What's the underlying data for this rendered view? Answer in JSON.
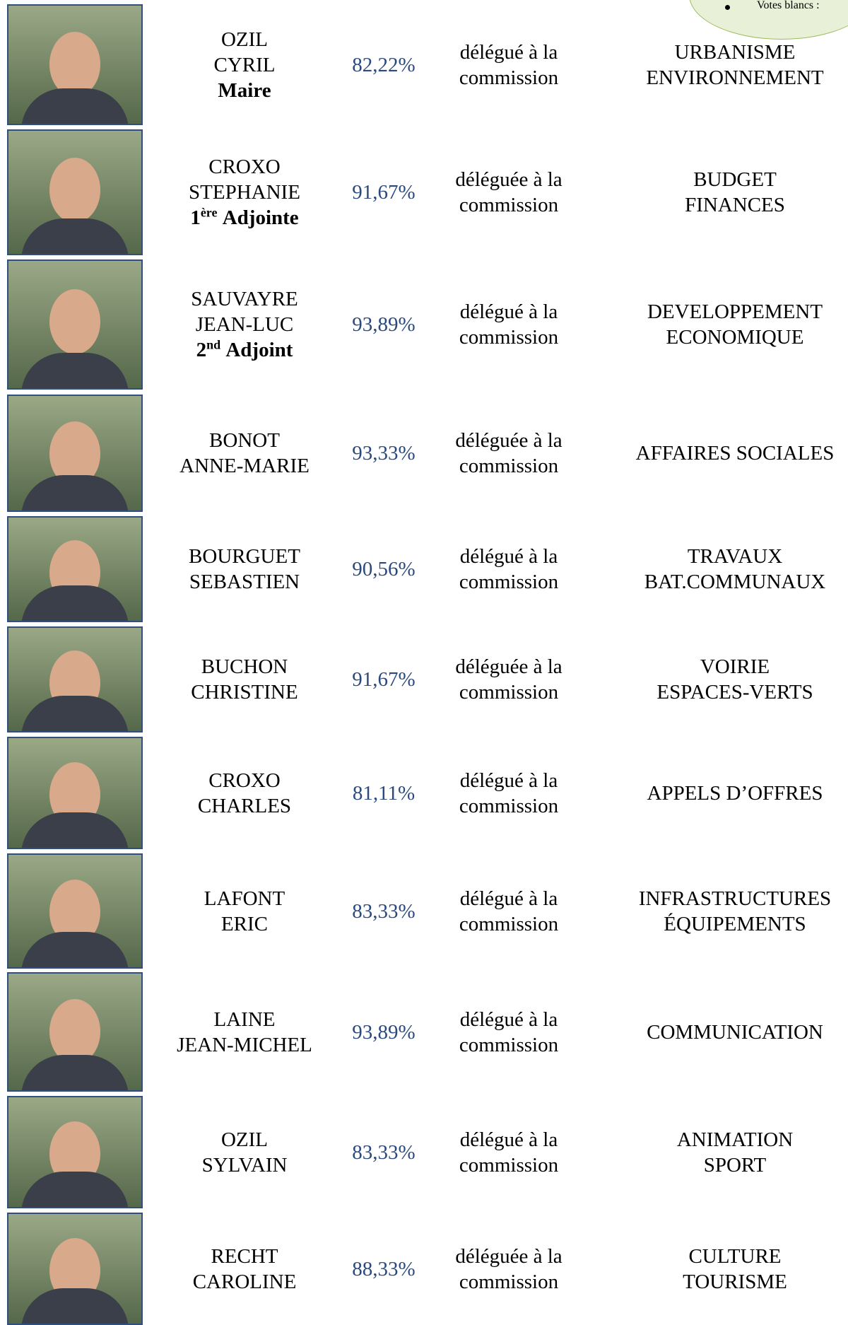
{
  "note": {
    "text": "Votes blancs :"
  },
  "rows": [
    {
      "name": [
        "OZIL",
        "CYRIL"
      ],
      "role": {
        "text": "Maire"
      },
      "percent": "82,22%",
      "delegate": [
        "délégué à la",
        "commission"
      ],
      "commission": [
        "URBANISME",
        "ENVIRONNEMENT"
      ]
    },
    {
      "name": [
        "CROXO",
        "STEPHANIE"
      ],
      "role": {
        "num": "1",
        "sup": "ère",
        "text": "Adjointe"
      },
      "percent": "91,67%",
      "delegate": [
        "déléguée à la",
        "commission"
      ],
      "commission": [
        "BUDGET",
        "FINANCES"
      ]
    },
    {
      "name": [
        "SAUVAYRE",
        "JEAN-LUC"
      ],
      "role": {
        "num": "2",
        "sup": "nd",
        "text": "Adjoint"
      },
      "percent": "93,89%",
      "delegate": [
        "délégué à la",
        "commission"
      ],
      "commission": [
        "DEVELOPPEMENT",
        "ECONOMIQUE"
      ]
    },
    {
      "name": [
        "BONOT",
        "ANNE-MARIE"
      ],
      "percent": "93,33%",
      "delegate": [
        "déléguée à la",
        "commission"
      ],
      "commission": [
        "AFFAIRES SOCIALES"
      ]
    },
    {
      "name": [
        "BOURGUET",
        "SEBASTIEN"
      ],
      "percent": "90,56%",
      "delegate": [
        "délégué à la",
        "commission"
      ],
      "commission": [
        "TRAVAUX",
        "BAT.COMMUNAUX"
      ]
    },
    {
      "name": [
        "BUCHON",
        "CHRISTINE"
      ],
      "percent": "91,67%",
      "delegate": [
        "déléguée à la",
        "commission"
      ],
      "commission": [
        "VOIRIE",
        "ESPACES-VERTS"
      ]
    },
    {
      "name": [
        "CROXO",
        "CHARLES"
      ],
      "percent": "81,11%",
      "delegate": [
        "délégué à la",
        "commission"
      ],
      "commission": [
        "APPELS D’OFFRES"
      ]
    },
    {
      "name": [
        "LAFONT",
        "ERIC"
      ],
      "percent": "83,33%",
      "delegate": [
        "délégué à la",
        "commission"
      ],
      "commission": [
        "INFRASTRUCTURES",
        "ÉQUIPEMENTS"
      ]
    },
    {
      "name": [
        "LAINE",
        "JEAN-MICHEL"
      ],
      "percent": "93,89%",
      "delegate": [
        "délégué à la",
        "commission"
      ],
      "commission": [
        "COMMUNICATION"
      ]
    },
    {
      "name": [
        "OZIL",
        "SYLVAIN"
      ],
      "percent": "83,33%",
      "delegate": [
        "délégué à la",
        "commission"
      ],
      "commission": [
        "ANIMATION",
        "SPORT"
      ]
    },
    {
      "name": [
        "RECHT",
        "CAROLINE"
      ],
      "percent": "88,33%",
      "delegate": [
        "déléguée à la",
        "commission"
      ],
      "commission": [
        "CULTURE",
        "TOURISME"
      ]
    }
  ]
}
